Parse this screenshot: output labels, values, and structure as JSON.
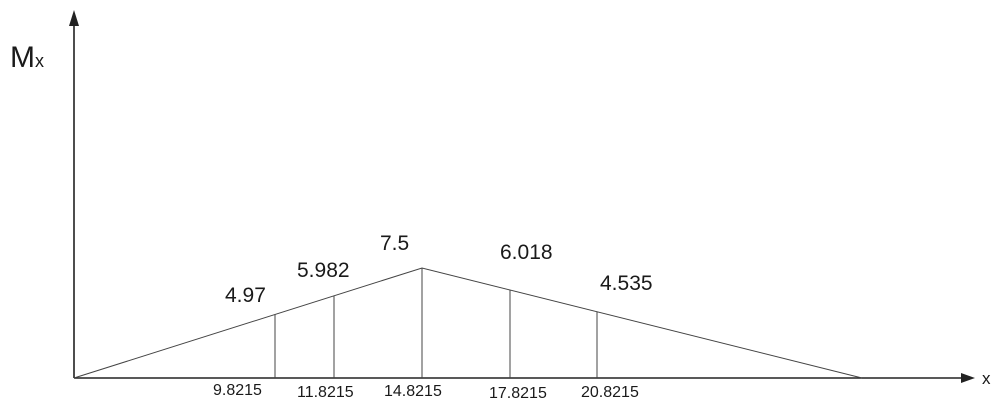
{
  "diagram": {
    "y_axis_label_main": "M",
    "y_axis_label_sub": "x",
    "x_axis_label": "x",
    "points": [
      {
        "x_label": "9.8215",
        "value_label": "4.97"
      },
      {
        "x_label": "11.8215",
        "value_label": "5.982"
      },
      {
        "x_label": "14.8215",
        "value_label": "7.5"
      },
      {
        "x_label": "17.8215",
        "value_label": "6.018"
      },
      {
        "x_label": "20.8215",
        "value_label": "4.535"
      }
    ]
  },
  "chart_data": {
    "type": "line",
    "xlabel": "x",
    "ylabel": "Mx",
    "x": [
      9.8215,
      11.8215,
      14.8215,
      17.8215,
      20.8215
    ],
    "values": [
      4.97,
      5.982,
      7.5,
      6.018,
      4.535
    ]
  }
}
